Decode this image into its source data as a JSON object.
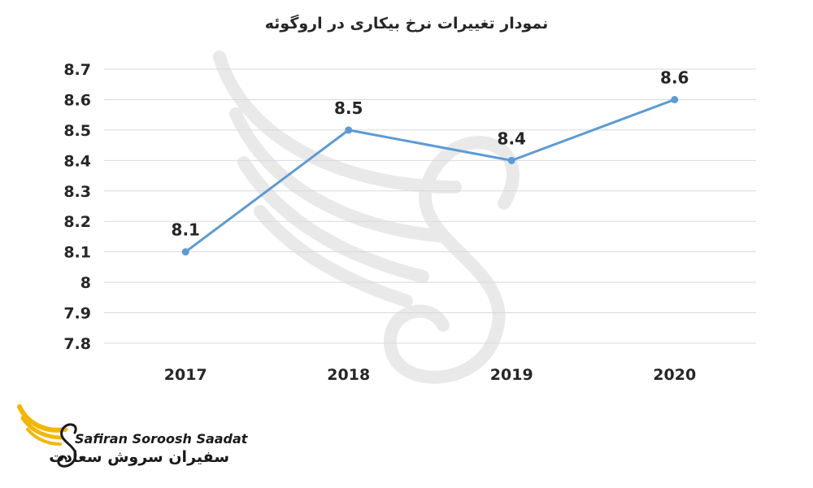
{
  "chart_data": {
    "type": "line",
    "title": "نمودار تغییرات نرخ بیکاری در اروگوئه",
    "categories": [
      "2017",
      "2018",
      "2019",
      "2020"
    ],
    "series": [
      {
        "values": [
          8.1,
          8.5,
          8.4,
          8.6
        ],
        "color": "#5b9bd5"
      }
    ],
    "data_labels": [
      "8.1",
      "8.5",
      "8.4",
      "8.6"
    ],
    "y_ticks": [
      "7.8",
      "7.9",
      "8",
      "8.1",
      "8.2",
      "8.3",
      "8.4",
      "8.5",
      "8.6",
      "8.7"
    ],
    "ylim": [
      7.8,
      8.7
    ],
    "grid": true,
    "gridline_color": "#d9d9d9"
  },
  "branding": {
    "logo_name_en": "Safiran Soroosh Saadat",
    "logo_name_fa": "سفیران سروش سعادت",
    "logo_color": "#f2b705"
  }
}
